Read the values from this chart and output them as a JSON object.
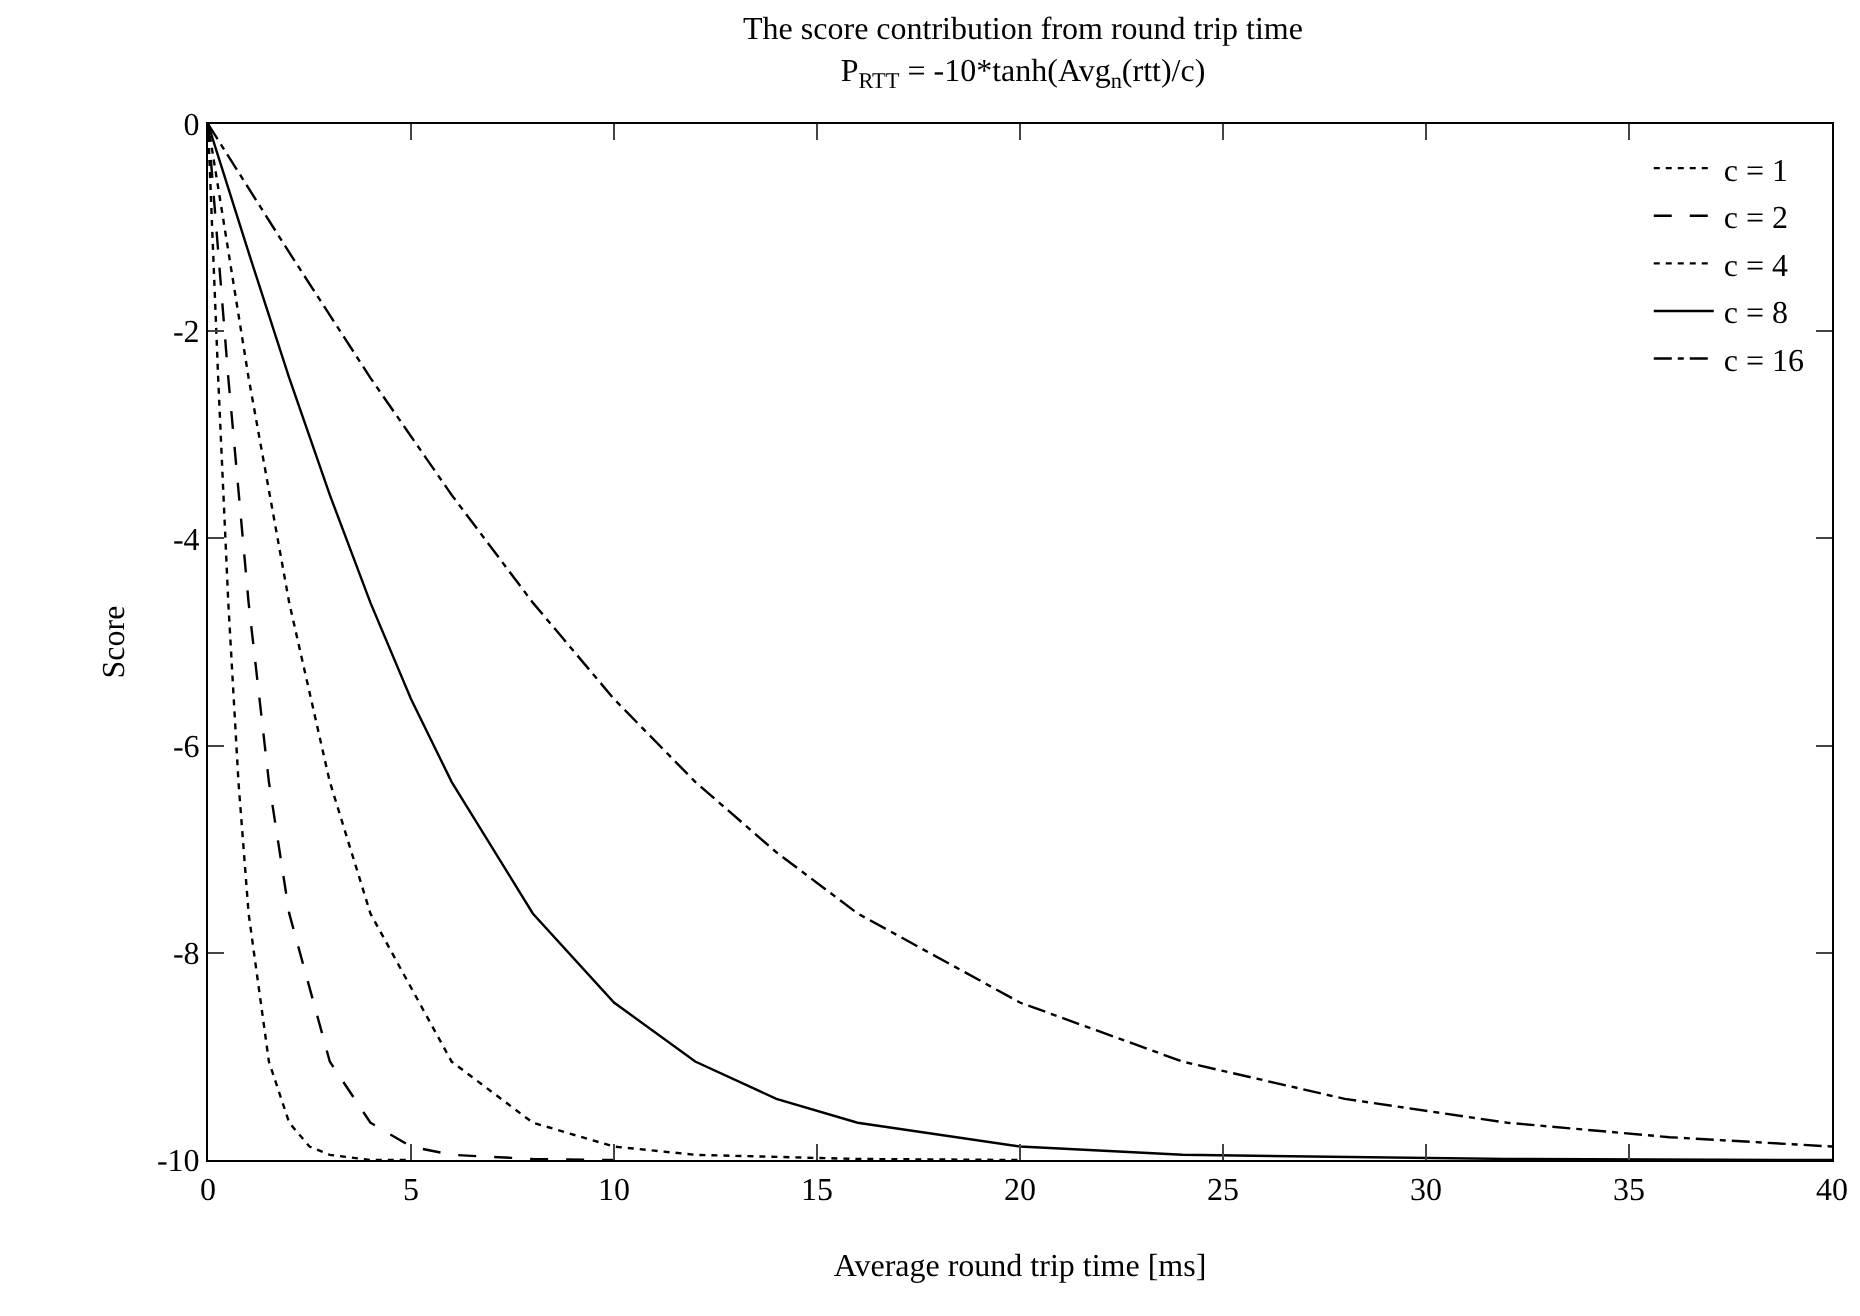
{
  "chart_data": {
    "type": "line",
    "title": "The score contribution from round trip time",
    "subtitle": "P$_{RTT}$ = -10*tanh(Avg$_{n}$(rtt)/c)",
    "xlabel": "Average round trip time [ms]",
    "ylabel": "Score",
    "xlim": [
      0,
      40
    ],
    "xticks": [
      0,
      5,
      10,
      15,
      20,
      25,
      30,
      35,
      40
    ],
    "ylim": [
      -10,
      0
    ],
    "yticks": [
      -10,
      -8,
      -6,
      -4,
      -2,
      0
    ],
    "grid": false,
    "legend": "top right",
    "marker": "none",
    "series": [
      {
        "name": "c = 1",
        "color": "#000000",
        "line_style": "dotted",
        "x": [
          0,
          0.25,
          0.5,
          0.75,
          1,
          1.5,
          2,
          2.5,
          3,
          4,
          5
        ],
        "values": [
          0,
          -2.45,
          -4.62,
          -6.35,
          -7.62,
          -9.05,
          -9.64,
          -9.87,
          -9.95,
          -10,
          -10
        ]
      },
      {
        "name": "c = 2",
        "color": "#000000",
        "line_style": "dashed",
        "x": [
          0,
          0.5,
          1,
          1.5,
          2,
          3,
          4,
          5,
          6,
          8,
          10
        ],
        "values": [
          0,
          -2.45,
          -4.62,
          -6.35,
          -7.62,
          -9.05,
          -9.64,
          -9.87,
          -9.95,
          -9.99,
          -10
        ]
      },
      {
        "name": "c = 4",
        "color": "#000000",
        "line_style": "dotted",
        "x": [
          0,
          1,
          2,
          3,
          4,
          6,
          8,
          10,
          12,
          16,
          20
        ],
        "values": [
          0,
          -2.45,
          -4.62,
          -6.35,
          -7.62,
          -9.05,
          -9.64,
          -9.87,
          -9.95,
          -9.99,
          -10
        ]
      },
      {
        "name": "c = 8",
        "color": "#000000",
        "line_style": "solid",
        "x": [
          0,
          1,
          2,
          3,
          4,
          5,
          6,
          8,
          10,
          12,
          14,
          16,
          20,
          24,
          32,
          40
        ],
        "values": [
          0,
          -1.24,
          -2.45,
          -3.58,
          -4.62,
          -5.55,
          -6.35,
          -7.62,
          -8.48,
          -9.05,
          -9.41,
          -9.64,
          -9.87,
          -9.95,
          -9.99,
          -10
        ]
      },
      {
        "name": "c = 16",
        "color": "#000000",
        "line_style": "dashdot",
        "x": [
          0,
          2,
          4,
          6,
          8,
          10,
          12,
          14,
          16,
          20,
          24,
          28,
          32,
          36,
          40
        ],
        "values": [
          0,
          -1.24,
          -2.45,
          -3.58,
          -4.62,
          -5.55,
          -6.35,
          -7.03,
          -7.62,
          -8.48,
          -9.05,
          -9.41,
          -9.64,
          -9.78,
          -9.87
        ]
      }
    ]
  }
}
